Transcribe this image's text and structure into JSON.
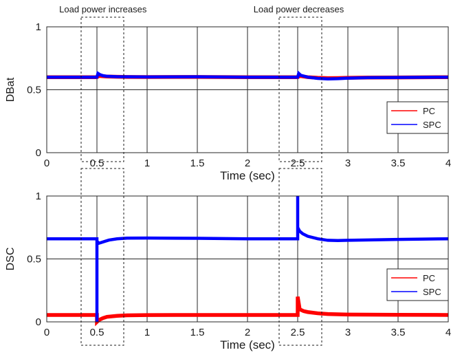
{
  "chart_data": [
    {
      "type": "line",
      "ylabel": "DBat",
      "xlabel": "Time (sec)",
      "xlim": [
        0,
        4
      ],
      "ylim": [
        0,
        1
      ],
      "xticks": [
        0,
        0.5,
        1,
        1.5,
        2,
        2.5,
        3,
        3.5,
        4
      ],
      "xtick_labels": [
        "0",
        "0.5",
        "1",
        "1.5",
        "2",
        "2.5",
        "3",
        "3.5",
        "4"
      ],
      "yticks": [
        0,
        0.5,
        1
      ],
      "ytick_labels": [
        "0",
        "0.5",
        "1"
      ],
      "grid": true,
      "legend_position": "right",
      "annotations": [
        {
          "text": "Load power increases",
          "x_range": [
            0.35,
            0.77
          ]
        },
        {
          "text": "Load power decreases",
          "x_range": [
            2.3,
            2.72
          ]
        }
      ],
      "series": [
        {
          "name": "PC",
          "color": "#ff0000",
          "x": [
            0,
            0.5,
            0.52,
            0.55,
            0.6,
            0.7,
            0.8,
            1.0,
            1.5,
            2.0,
            2.5,
            2.52,
            2.6,
            2.7,
            2.8,
            2.9,
            3.0,
            3.2,
            3.5,
            4.0
          ],
          "y": [
            0.6,
            0.6,
            0.61,
            0.608,
            0.605,
            0.603,
            0.602,
            0.601,
            0.602,
            0.6,
            0.6,
            0.61,
            0.6,
            0.595,
            0.592,
            0.593,
            0.595,
            0.597,
            0.598,
            0.6
          ]
        },
        {
          "name": "SPC",
          "color": "#0000ff",
          "x": [
            0,
            0.5,
            0.51,
            0.53,
            0.56,
            0.6,
            0.7,
            0.8,
            1.0,
            1.5,
            2.0,
            2.5,
            2.51,
            2.53,
            2.6,
            2.7,
            2.8,
            2.9,
            3.0,
            3.2,
            3.5,
            4.0
          ],
          "y": [
            0.6,
            0.6,
            0.63,
            0.62,
            0.612,
            0.607,
            0.604,
            0.603,
            0.602,
            0.603,
            0.6,
            0.6,
            0.63,
            0.615,
            0.6,
            0.59,
            0.586,
            0.588,
            0.592,
            0.596,
            0.598,
            0.6
          ]
        }
      ]
    },
    {
      "type": "line",
      "ylabel": "DSC",
      "xlabel": "Time (sec)",
      "xlim": [
        0,
        4
      ],
      "ylim": [
        0,
        1
      ],
      "xticks": [
        0,
        0.5,
        1,
        1.5,
        2,
        2.5,
        3,
        3.5,
        4
      ],
      "xtick_labels": [
        "0",
        "0.5",
        "1",
        "1.5",
        "2",
        "2.5",
        "3",
        "3.5",
        "4"
      ],
      "yticks": [
        0,
        0.5,
        1
      ],
      "ytick_labels": [
        "0",
        "0.5",
        "1"
      ],
      "grid": true,
      "legend_position": "bottom-right",
      "series": [
        {
          "name": "PC",
          "color": "#ff0000",
          "x": [
            0,
            0.5,
            0.5,
            0.52,
            0.56,
            0.6,
            0.7,
            0.8,
            1.0,
            1.5,
            2.0,
            2.5,
            2.5,
            2.52,
            2.56,
            2.6,
            2.7,
            2.8,
            3.0,
            3.5,
            4.0
          ],
          "y": [
            0.055,
            0.055,
            0.0,
            0.015,
            0.03,
            0.04,
            0.048,
            0.052,
            0.054,
            0.055,
            0.055,
            0.055,
            0.2,
            0.1,
            0.085,
            0.078,
            0.068,
            0.062,
            0.058,
            0.056,
            0.055
          ]
        },
        {
          "name": "SPC",
          "color": "#0000ff",
          "x": [
            0,
            0.5,
            0.5,
            0.5,
            0.52,
            0.54,
            0.58,
            0.62,
            0.7,
            0.8,
            1.0,
            1.5,
            2.0,
            2.5,
            2.5,
            2.5,
            2.52,
            2.55,
            2.6,
            2.7,
            2.8,
            2.9,
            3.0,
            3.5,
            4.0
          ],
          "y": [
            0.66,
            0.66,
            0.0,
            0.64,
            0.625,
            0.63,
            0.64,
            0.65,
            0.66,
            0.665,
            0.666,
            0.664,
            0.66,
            0.66,
            1.0,
            0.75,
            0.72,
            0.7,
            0.68,
            0.66,
            0.648,
            0.646,
            0.648,
            0.655,
            0.66
          ]
        }
      ]
    }
  ]
}
